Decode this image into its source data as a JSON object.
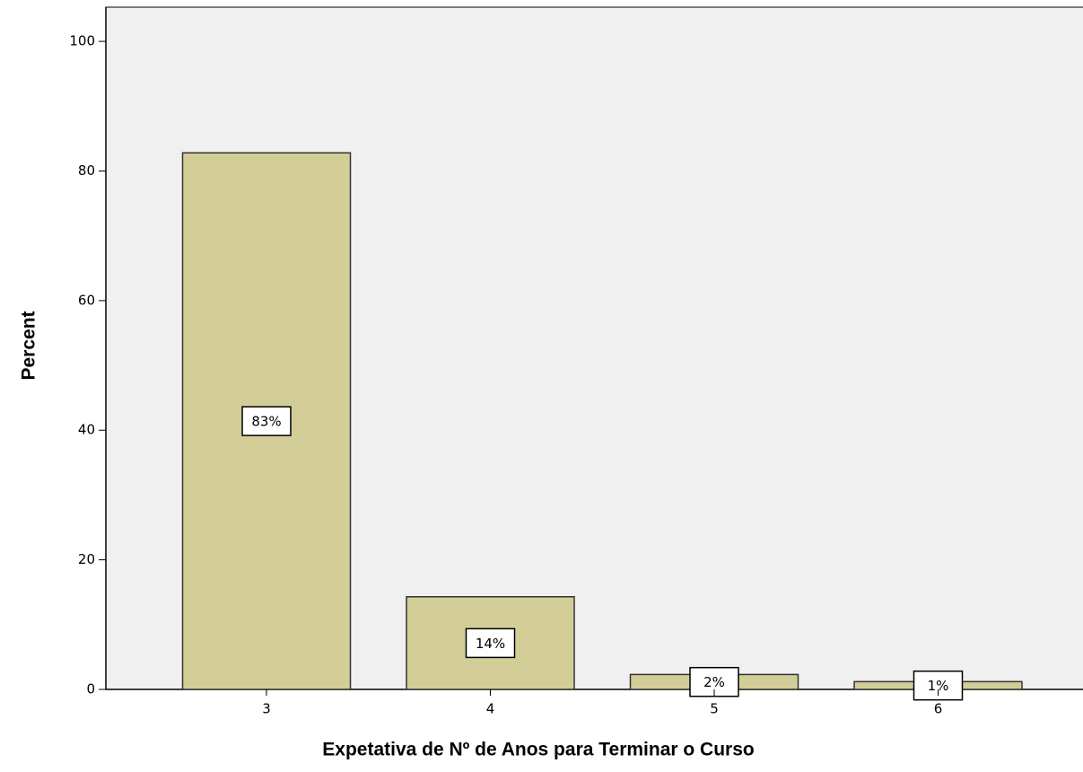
{
  "chart_data": {
    "type": "bar",
    "x_label": "Expetativa de Nº de Anos para Terminar o Curso",
    "y_label": "Percent",
    "categories": [
      "3",
      "4",
      "5",
      "6"
    ],
    "values": [
      82.8,
      14.3,
      2.3,
      1.2
    ],
    "value_labels": [
      "83%",
      "14%",
      "2%",
      "1%"
    ],
    "color": "#d3ce97",
    "ylim": [
      0,
      105
    ],
    "yticks": [
      0,
      20,
      40,
      60,
      80,
      100
    ]
  }
}
